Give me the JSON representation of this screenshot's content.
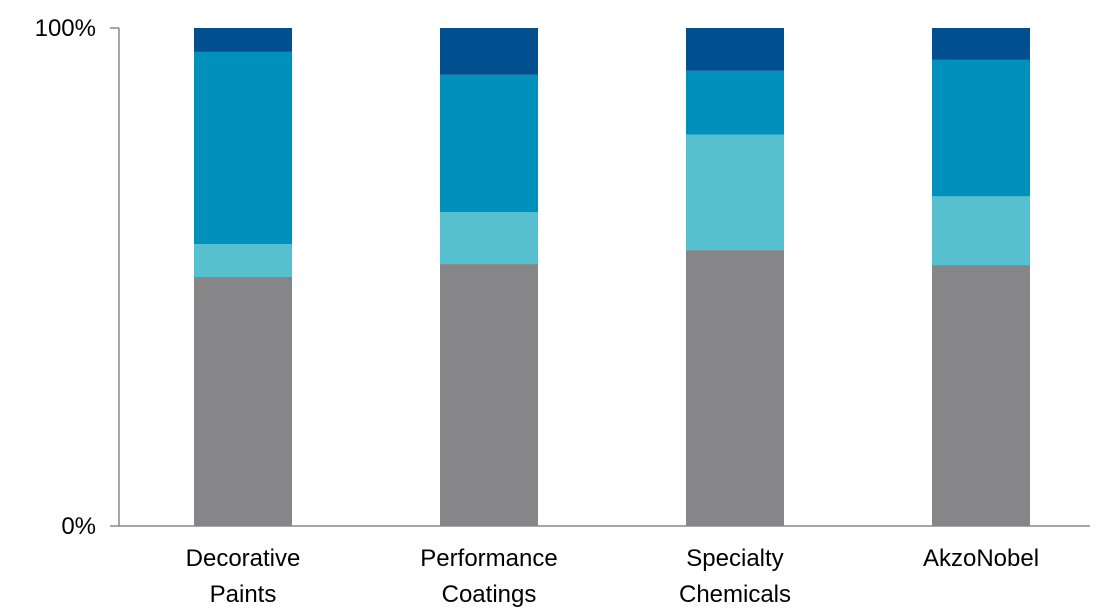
{
  "chart_data": {
    "type": "bar",
    "stacked": true,
    "normalized": true,
    "categories": [
      [
        "Decorative",
        "Paints"
      ],
      [
        "Performance",
        "Coatings"
      ],
      [
        "Specialty",
        "Chemicals"
      ],
      [
        "AkzoNobel"
      ]
    ],
    "series": [
      {
        "values": [
          50,
          52.6,
          55.4,
          52.4
        ],
        "color": "#868689"
      },
      {
        "values": [
          6.6,
          10.4,
          23.2,
          13.8
        ],
        "color": "#56c0cf"
      },
      {
        "values": [
          38.6,
          27.6,
          12.8,
          27.4
        ],
        "color": "#0090bc"
      },
      {
        "values": [
          4.8,
          9.4,
          8.6,
          6.4
        ],
        "color": "#004f8e"
      }
    ],
    "y_ticks": [
      "0%",
      "100%"
    ],
    "ylim": [
      0,
      100
    ],
    "grid": false,
    "legend": "none"
  }
}
